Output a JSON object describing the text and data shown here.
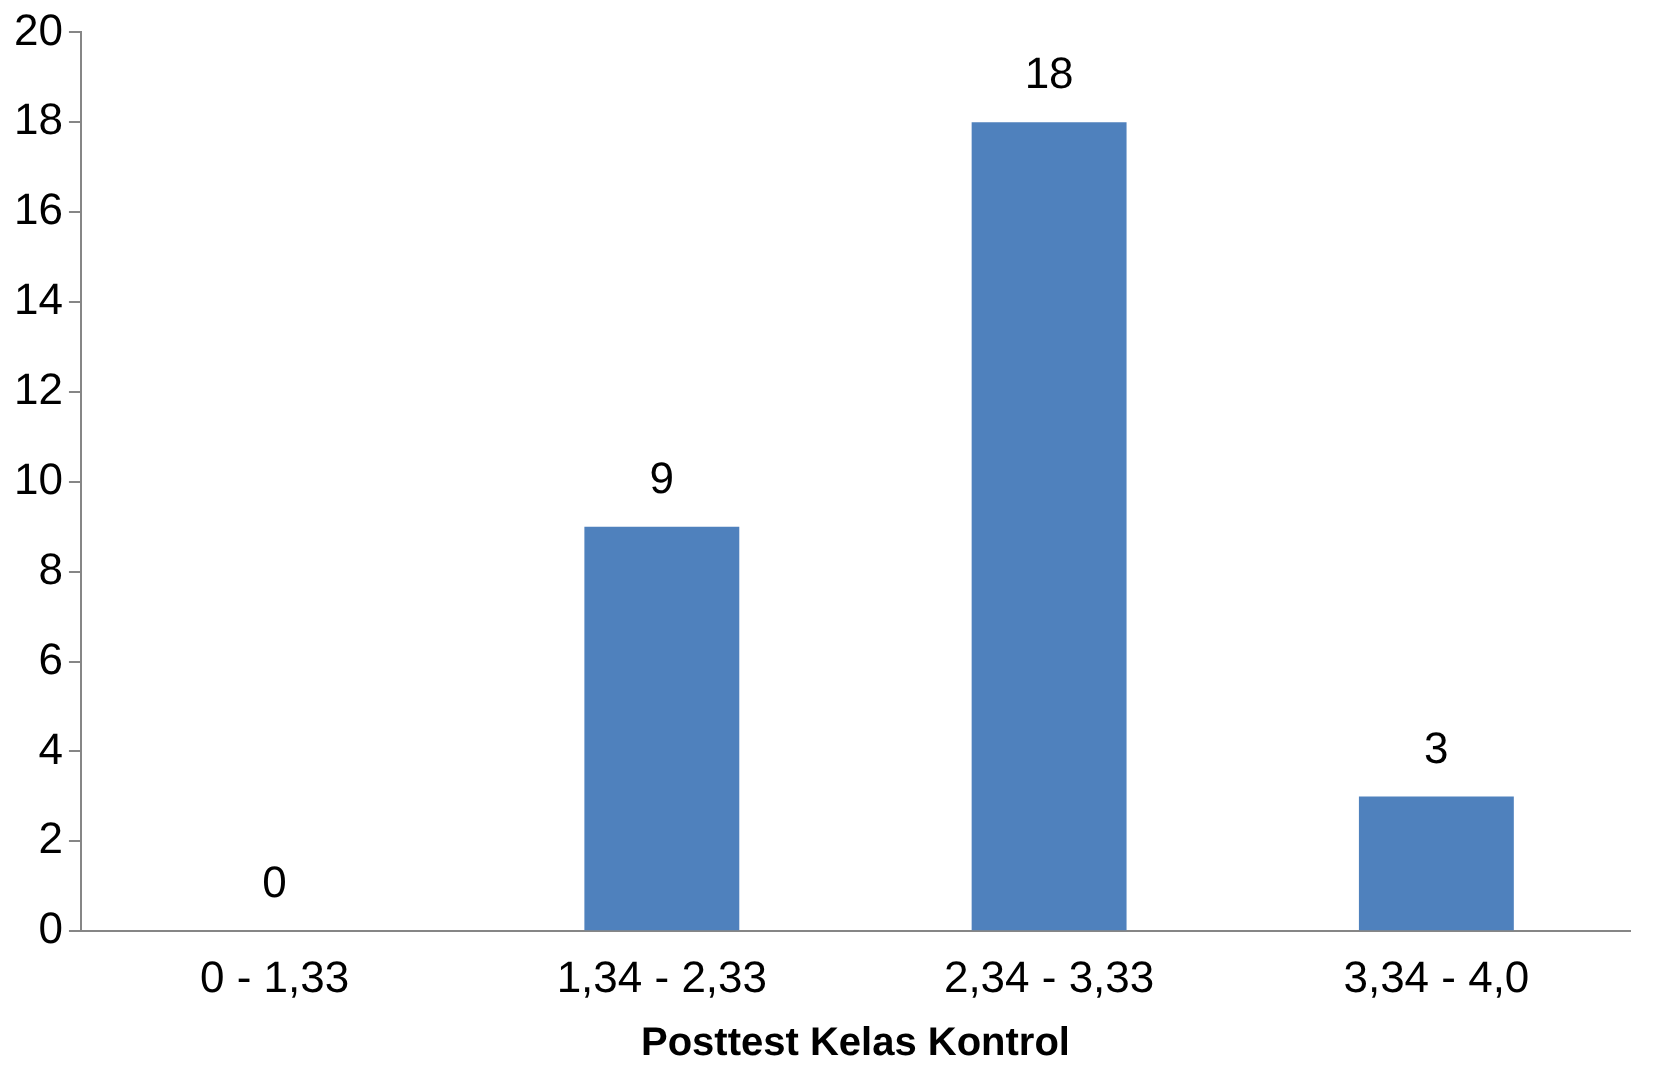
{
  "chart_data": {
    "type": "bar",
    "xlabel": "Posttest Kelas Kontrol",
    "categories": [
      "0 - 1,33",
      "1,34 - 2,33",
      "2,34 - 3,33",
      "3,34 - 4,0"
    ],
    "values": [
      0,
      9,
      18,
      3
    ],
    "color": "#4f81bd",
    "ylim": [
      0,
      20
    ],
    "yticks": [
      0,
      2,
      4,
      6,
      8,
      10,
      12,
      14,
      16,
      18,
      20
    ],
    "grid": false,
    "legend": false,
    "data_labels": true
  }
}
